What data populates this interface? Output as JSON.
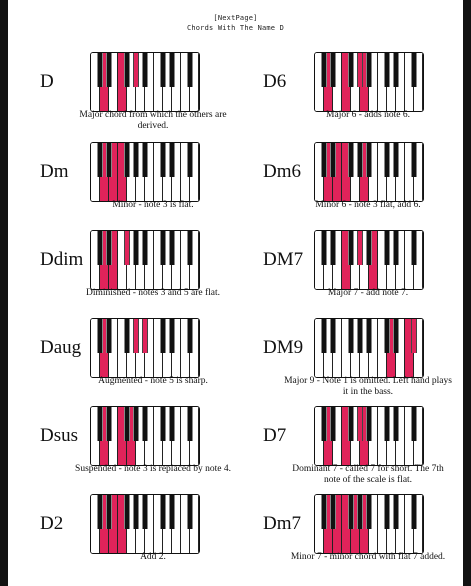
{
  "header": {
    "line1": "[NextPage]",
    "line2": "Chords With The Name D"
  },
  "colors": {
    "highlight": "#e0235a",
    "key_black": "#111111",
    "background": "#ffffff"
  },
  "keyboard_layout": {
    "white_keys": 12,
    "black_key_indices": [
      0,
      1,
      3,
      4,
      5,
      7,
      8,
      10
    ]
  },
  "chords": [
    {
      "name": "D",
      "caption": "Major chord from which the others are derived.",
      "lit_white": [
        1,
        3
      ],
      "lit_black": [
        4
      ]
    },
    {
      "name": "D6",
      "caption": "Major 6 - adds note 6.",
      "lit_white": [
        1,
        3,
        5
      ],
      "lit_black": [
        4
      ]
    },
    {
      "name": "Dm",
      "caption": "Minor - note 3 is flat.",
      "lit_white": [
        1,
        2,
        3
      ],
      "lit_black": []
    },
    {
      "name": "Dm6",
      "caption": "Minor 6 - note 3 flat, add 6.",
      "lit_white": [
        1,
        2,
        3,
        5
      ],
      "lit_black": []
    },
    {
      "name": "Ddim",
      "caption": "Diminished - notes 3 and 5 are flat.",
      "lit_white": [
        1,
        2
      ],
      "lit_black": [
        3
      ]
    },
    {
      "name": "DM7",
      "caption": "Major 7 - add note 7.",
      "lit_white": [
        3,
        6
      ],
      "lit_black": [
        4
      ]
    },
    {
      "name": "Daug",
      "caption": "Augmented - note 5 is sharp.",
      "lit_white": [
        1
      ],
      "lit_black": [
        4,
        5
      ]
    },
    {
      "name": "DM9",
      "caption": "Major 9 - Note 1 is omitted. Left hand plays it in the bass.",
      "lit_white": [
        8,
        10
      ],
      "lit_black": [
        10
      ]
    },
    {
      "name": "Dsus",
      "caption": "Suspended - note 3 is replaced by note 4.",
      "lit_white": [
        1,
        3,
        4
      ],
      "lit_black": []
    },
    {
      "name": "D7",
      "caption": "Dominant 7 - called 7 for short. The 7th note of the scale is flat.",
      "lit_white": [
        1,
        3,
        5
      ],
      "lit_black": [
        4
      ]
    },
    {
      "name": "D2",
      "caption": "Add 2.",
      "lit_white": [
        1,
        2,
        3
      ],
      "lit_black": []
    },
    {
      "name": "Dm7",
      "caption": "Minor 7 - minor chord with flat 7 added.",
      "lit_white": [
        1,
        2,
        3,
        4,
        5
      ],
      "lit_black": []
    }
  ]
}
